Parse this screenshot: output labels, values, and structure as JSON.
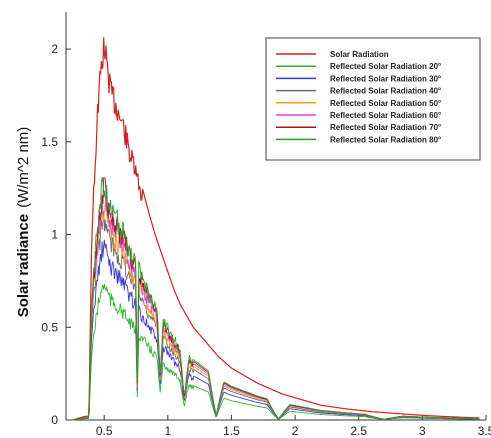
{
  "chart_data": {
    "type": "line",
    "title": "",
    "xlabel": "",
    "ylabel": "Solar radiance",
    "ylabel_unit": "(W/m^2 nm)",
    "xlim": [
      0.2,
      3.5
    ],
    "ylim": [
      0,
      2.2
    ],
    "xticks": [
      0.5,
      1,
      1.5,
      2,
      2.5,
      3,
      3.5
    ],
    "yticks": [
      0,
      0.5,
      1,
      1.5,
      2
    ],
    "xtick_labels": [
      "0.5",
      "1",
      "1.5",
      "2",
      "2.5",
      "3",
      "3.5"
    ],
    "ytick_labels": [
      "0",
      "0.5",
      "1",
      "1.5",
      "2"
    ],
    "grid": false,
    "legend_position": "top-right",
    "base_profile": {
      "x": [
        0.25,
        0.3,
        0.35,
        0.38,
        0.4,
        0.42,
        0.45,
        0.48,
        0.5,
        0.53,
        0.55,
        0.6,
        0.65,
        0.7,
        0.75,
        0.8,
        0.85,
        0.9,
        0.95,
        1.0,
        1.05,
        1.1,
        1.15,
        1.2,
        1.25,
        1.3,
        1.35,
        1.4,
        1.5,
        1.6,
        1.7,
        1.8,
        1.9,
        2.0,
        2.2,
        2.4,
        2.6,
        2.8,
        3.0,
        3.2,
        3.4
      ],
      "y": [
        0,
        0.01,
        0.02,
        0.02,
        0.9,
        1.3,
        1.75,
        2.0,
        2.1,
        1.95,
        1.85,
        1.75,
        1.65,
        1.5,
        1.38,
        1.25,
        1.12,
        1.0,
        0.9,
        0.8,
        0.7,
        0.62,
        0.56,
        0.5,
        0.46,
        0.42,
        0.38,
        0.34,
        0.28,
        0.24,
        0.2,
        0.17,
        0.14,
        0.12,
        0.08,
        0.06,
        0.045,
        0.035,
        0.025,
        0.018,
        0.012
      ]
    },
    "series": [
      {
        "name": "Solar Radiation",
        "color": "#d62020",
        "peak": 2.1
      },
      {
        "name": "Reflected Solar Radiation 20°",
        "color": "#2db82d",
        "peak": 0.78
      },
      {
        "name": "Reflected Solar Radiation 30°",
        "color": "#3a3ae0",
        "peak": 1.0
      },
      {
        "name": "Reflected Solar Radiation 40°",
        "color": "#6b6b6b",
        "peak": 1.15
      },
      {
        "name": "Reflected Solar Radiation 50°",
        "color": "#ff9a1f",
        "peak": 1.22
      },
      {
        "name": "Reflected Solar Radiation 60°",
        "color": "#e040e0",
        "peak": 1.28
      },
      {
        "name": "Reflected Solar Radiation 70°",
        "color": "#a01818",
        "peak": 1.33
      },
      {
        "name": "Reflected Solar Radiation 80°",
        "color": "#21a621",
        "peak": 1.37
      }
    ]
  }
}
